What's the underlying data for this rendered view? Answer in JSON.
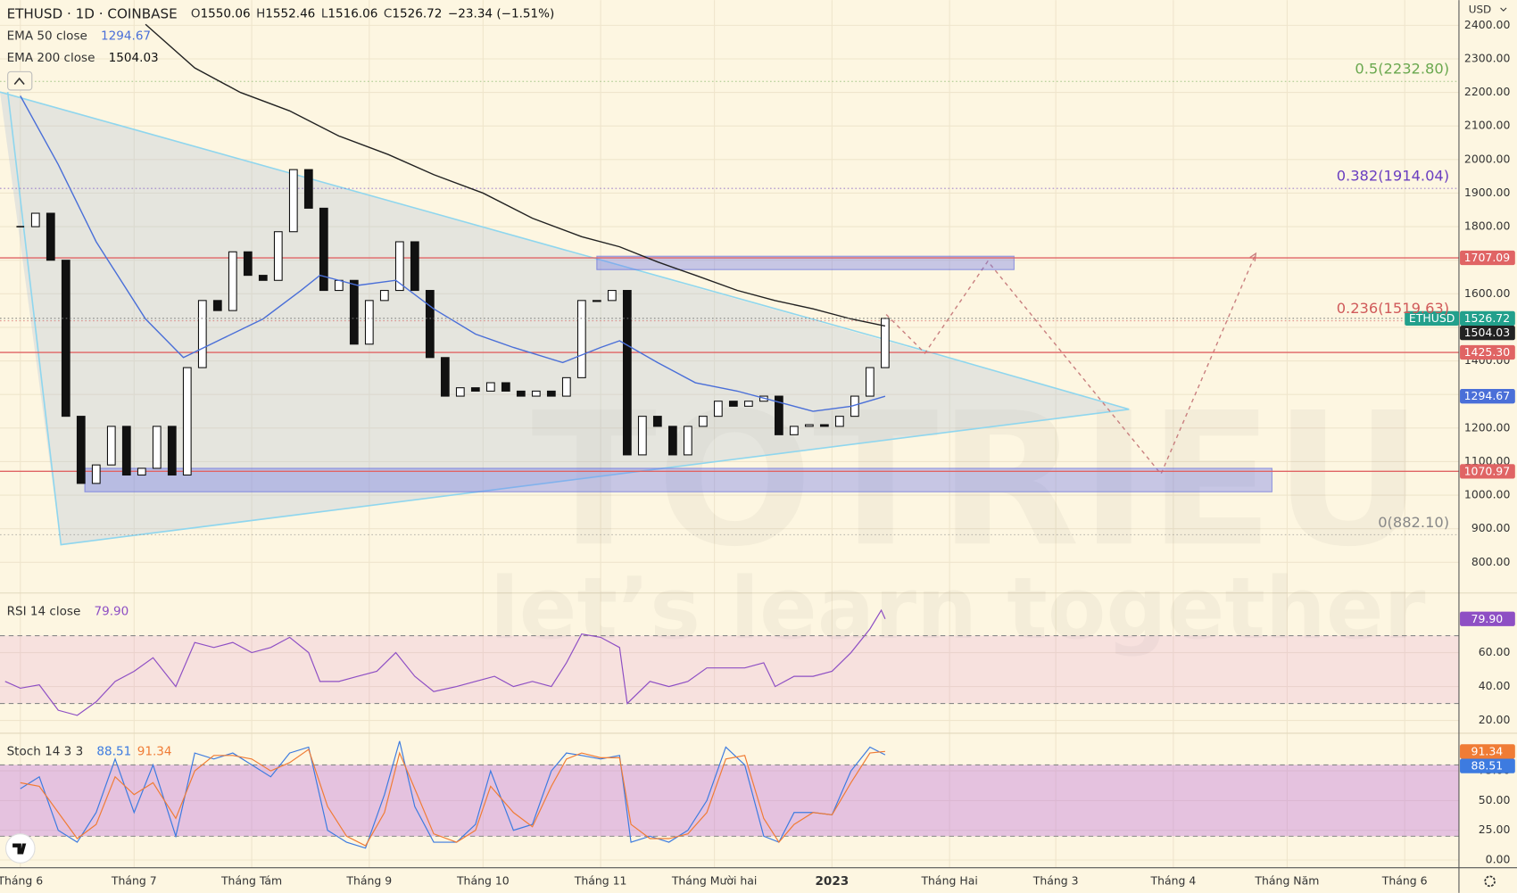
{
  "chart_data": [
    {
      "type": "candlestick",
      "title": "ETHUSD · 1D · COINBASE",
      "ohlc": [
        {
          "label": "O",
          "value": 1550.06
        },
        {
          "label": "H",
          "value": 1552.46
        },
        {
          "label": "L",
          "value": 1516.06
        },
        {
          "label": "C",
          "value": 1526.72
        }
      ],
      "change": "−23.34 (−1.51%)",
      "currency": "USD",
      "symbol": "ETHUSD",
      "x": [
        0,
        4,
        8,
        12,
        16,
        20,
        24,
        28,
        32,
        36,
        40,
        44,
        48,
        52,
        56,
        60,
        64,
        68,
        72,
        76,
        80,
        84,
        88,
        92,
        96,
        100,
        104,
        108,
        112,
        116,
        120,
        124,
        128,
        132,
        136,
        140,
        144,
        148,
        152,
        156,
        160,
        164,
        168,
        172,
        176,
        180,
        184,
        188,
        192,
        196,
        200,
        204,
        208,
        212,
        216,
        220,
        224,
        228
      ],
      "values": [
        1800,
        1840,
        1700,
        1235,
        1035,
        1090,
        1205,
        1060,
        1080,
        1205,
        1060,
        1380,
        1580,
        1550,
        1725,
        1655,
        1640,
        1785,
        1970,
        1855,
        1610,
        1640,
        1450,
        1580,
        1610,
        1755,
        1610,
        1410,
        1295,
        1320,
        1310,
        1335,
        1310,
        1295,
        1310,
        1295,
        1350,
        1580,
        1580,
        1610,
        1120,
        1235,
        1205,
        1120,
        1205,
        1235,
        1280,
        1265,
        1280,
        1295,
        1180,
        1205,
        1210,
        1205,
        1235,
        1295,
        1380,
        1526.72
      ],
      "up_color": "#ffffff",
      "down_color": "#111111",
      "last_color": "#22a08c",
      "series": [
        {
          "name": "EMA 50 close",
          "color": "#4a6fd8",
          "x": [
            0,
            10,
            20,
            33,
            43,
            53,
            64,
            74,
            79,
            89,
            99,
            109,
            120,
            130,
            143,
            153,
            158,
            168,
            178,
            189,
            199,
            209,
            219,
            228
          ],
          "values": [
            2190,
            1985,
            1755,
            1525,
            1410,
            1465,
            1525,
            1610,
            1655,
            1625,
            1640,
            1555,
            1480,
            1440,
            1395,
            1440,
            1460,
            1395,
            1335,
            1310,
            1280,
            1250,
            1265,
            1294.67
          ]
        },
        {
          "name": "EMA 200 close",
          "color": "#222222",
          "x": [
            33,
            46,
            58,
            71,
            84,
            97,
            109,
            122,
            135,
            148,
            158,
            168,
            178,
            189,
            199,
            209,
            219,
            228
          ],
          "values": [
            2403,
            2273,
            2200,
            2145,
            2070,
            2015,
            1955,
            1900,
            1825,
            1770,
            1740,
            1695,
            1655,
            1610,
            1580,
            1555,
            1525,
            1504.03
          ]
        }
      ],
      "levels": [
        1707.09,
        {
          "value": 1425.3,
          "label": "1425.30"
        },
        1070.97
      ],
      "level_color": "#e06464",
      "fib": [
        {
          "value": 2232.8,
          "label": "0.5(2232.80)",
          "color": "#6aa84f"
        },
        {
          "value": 1914.04,
          "label": "0.382(1914.04)",
          "color": "#6a3fc0"
        },
        {
          "value": 1519.63,
          "label": "0.236(1519.63)",
          "color": "#d05a5a"
        },
        {
          "value": 882.1,
          "label": "0(882.10)",
          "color": "#888888"
        }
      ],
      "zones": [
        {
          "x": [
            152,
            262
          ],
          "y": [
            1672,
            1712
          ]
        },
        {
          "x": [
            17,
            330
          ],
          "y": [
            1010,
            1080
          ]
        }
      ],
      "xlim": [
        -5.36,
        379.3
      ],
      "xticks": [
        {
          "value": 0,
          "label": "Tháng 6"
        },
        {
          "value": 30,
          "label": "Tháng 7"
        },
        {
          "value": 61,
          "label": "Tháng Tám"
        },
        {
          "value": 92,
          "label": "Tháng 9"
        },
        {
          "value": 122,
          "label": "Tháng 10"
        },
        {
          "value": 153,
          "label": "Tháng 11"
        },
        {
          "value": 183,
          "label": "Tháng Mười hai"
        },
        {
          "value": 214,
          "label": "2023"
        },
        {
          "value": 245,
          "label": "Tháng Hai"
        },
        {
          "value": 273,
          "label": "Tháng 3"
        },
        {
          "value": 304,
          "label": "Tháng 4"
        },
        {
          "value": 334,
          "label": "Tháng Năm"
        },
        {
          "value": 365,
          "label": "Tháng 6"
        }
      ],
      "ylim": [
        717,
        2475
      ],
      "yticks": [
        {
          "value": 800,
          "label": "800.00"
        },
        {
          "value": 900,
          "label": "900.00"
        },
        {
          "value": 1000,
          "label": "1000.00"
        },
        {
          "value": 1100,
          "label": "1100.00"
        },
        {
          "value": 1200,
          "label": "1200.00"
        },
        {
          "value": 1300,
          "label": "1300.00"
        },
        {
          "value": 1400,
          "label": "1400.00"
        },
        {
          "value": 1500,
          "label": "1500.00"
        },
        {
          "value": 1600,
          "label": "1600.00"
        },
        {
          "value": 1700,
          "label": "1700.00"
        },
        {
          "value": 1800,
          "label": "1800.00"
        },
        {
          "value": 1900,
          "label": "1900.00"
        },
        {
          "value": 2000,
          "label": "2000.00"
        },
        {
          "value": 2100,
          "label": "2100.00"
        },
        {
          "value": 2200,
          "label": "2200.00"
        },
        {
          "value": 2300,
          "label": "2300.00"
        },
        {
          "value": 2400,
          "label": "2400.00"
        }
      ],
      "grid": true
    },
    {
      "type": "line",
      "title": "RSI 14 close",
      "x": [
        -4,
        0,
        5,
        10,
        15,
        20,
        25,
        30,
        35,
        41,
        46,
        51,
        56,
        61,
        66,
        71,
        76,
        79,
        84,
        89,
        94,
        99,
        104,
        109,
        115,
        120,
        125,
        130,
        135,
        140,
        144,
        148,
        153,
        158,
        160,
        166,
        171,
        176,
        181,
        186,
        191,
        196,
        199,
        204,
        209,
        214,
        219,
        224,
        227,
        228
      ],
      "series": [
        {
          "color": "#8e4fc4",
          "values": [
            43,
            39,
            41,
            26,
            23,
            31,
            43,
            49,
            57,
            40,
            66,
            63,
            66,
            60,
            63,
            69,
            60,
            43,
            43,
            46,
            49,
            60,
            46,
            37,
            40,
            43,
            46,
            40,
            43,
            40,
            54,
            71,
            69,
            63,
            30,
            43,
            40,
            43,
            51,
            51,
            51,
            54,
            40,
            46,
            46,
            49,
            60,
            74,
            85,
            79.9
          ],
          "last_label": "79.90"
        }
      ],
      "band": [
        30,
        70
      ],
      "band_color": "rgba(215,120,210,0.16)",
      "ylim": [
        13,
        94
      ],
      "yticks": [
        {
          "value": 20,
          "label": "20.00"
        },
        {
          "value": 40,
          "label": "40.00"
        },
        {
          "value": 60,
          "label": "60.00"
        }
      ]
    },
    {
      "type": "line",
      "title": "Stoch 14 3 3",
      "x": [
        0,
        5,
        10,
        15,
        20,
        25,
        30,
        35,
        41,
        46,
        51,
        56,
        61,
        66,
        71,
        76,
        81,
        86,
        91,
        96,
        100,
        104,
        109,
        115,
        120,
        124,
        130,
        135,
        140,
        144,
        148,
        153,
        158,
        161,
        166,
        171,
        176,
        181,
        186,
        191,
        196,
        200,
        204,
        209,
        214,
        219,
        224,
        228
      ],
      "series": [
        {
          "color": "#3d7be0",
          "values": [
            60,
            70,
            25,
            15,
            40,
            85,
            40,
            80,
            20,
            90,
            85,
            90,
            80,
            70,
            90,
            95,
            25,
            15,
            10,
            55,
            100,
            45,
            15,
            15,
            30,
            75,
            25,
            30,
            75,
            90,
            88,
            85,
            88,
            15,
            20,
            15,
            25,
            50,
            95,
            80,
            20,
            15,
            40,
            40,
            38,
            75,
            95,
            88.51
          ]
        },
        {
          "color": "#f07c35",
          "values": [
            65,
            62,
            40,
            18,
            30,
            70,
            55,
            65,
            35,
            75,
            88,
            88,
            85,
            75,
            82,
            93,
            45,
            20,
            12,
            40,
            90,
            60,
            22,
            15,
            25,
            62,
            40,
            28,
            62,
            85,
            90,
            86,
            86,
            30,
            18,
            18,
            22,
            40,
            85,
            88,
            35,
            15,
            30,
            40,
            38,
            65,
            90,
            91.34
          ]
        }
      ],
      "band": [
        20,
        80
      ],
      "band_color": "rgba(190,110,220,0.38)",
      "ylim": [
        -6.5,
        105
      ],
      "yticks": [
        {
          "value": 0,
          "label": "0.00"
        },
        {
          "value": 25,
          "label": "25.00"
        },
        {
          "value": 50,
          "label": "50.00"
        },
        {
          "value": 75,
          "label": "75.00"
        }
      ]
    }
  ],
  "watermark": {
    "title": "TOTRIEU",
    "tagline": "let’s learn together"
  }
}
